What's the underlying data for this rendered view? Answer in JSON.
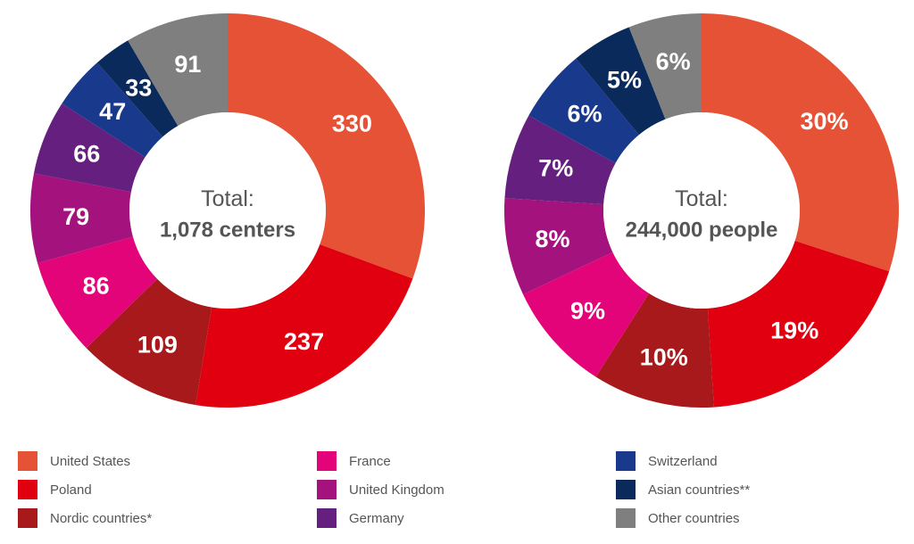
{
  "chart_data": [
    {
      "type": "pie",
      "variant": "donut",
      "center_title": "Total:",
      "center_value": "1,078 centers",
      "categories": [
        "United States",
        "Poland",
        "Nordic countries*",
        "France",
        "United Kingdom",
        "Germany",
        "Switzerland",
        "Asian countries**",
        "Other countries"
      ],
      "values": [
        330,
        237,
        109,
        86,
        79,
        66,
        47,
        33,
        91
      ],
      "labels": [
        "330",
        "237",
        "109",
        "86",
        "79",
        "66",
        "47",
        "33",
        "91"
      ]
    },
    {
      "type": "pie",
      "variant": "donut",
      "center_title": "Total:",
      "center_value": "244,000 people",
      "categories": [
        "United States",
        "Poland",
        "Nordic countries*",
        "France",
        "United Kingdom",
        "Germany",
        "Switzerland",
        "Asian countries**",
        "Other countries"
      ],
      "values": [
        30,
        19,
        10,
        9,
        8,
        7,
        6,
        5,
        6
      ],
      "labels": [
        "30%",
        "19%",
        "10%",
        "9%",
        "8%",
        "7%",
        "6%",
        "5%",
        "6%"
      ]
    }
  ],
  "legend": [
    {
      "label": "United States",
      "color": "#E65235"
    },
    {
      "label": "Poland",
      "color": "#E0000F"
    },
    {
      "label": "Nordic countries*",
      "color": "#A8191C"
    },
    {
      "label": "France",
      "color": "#E4047A"
    },
    {
      "label": "United Kingdom",
      "color": "#A3127D"
    },
    {
      "label": "Germany",
      "color": "#651F7F"
    },
    {
      "label": "Switzerland",
      "color": "#193A8C"
    },
    {
      "label": "Asian countries**",
      "color": "#0A2A5C"
    },
    {
      "label": "Other countries",
      "color": "#7F7F7F"
    }
  ]
}
